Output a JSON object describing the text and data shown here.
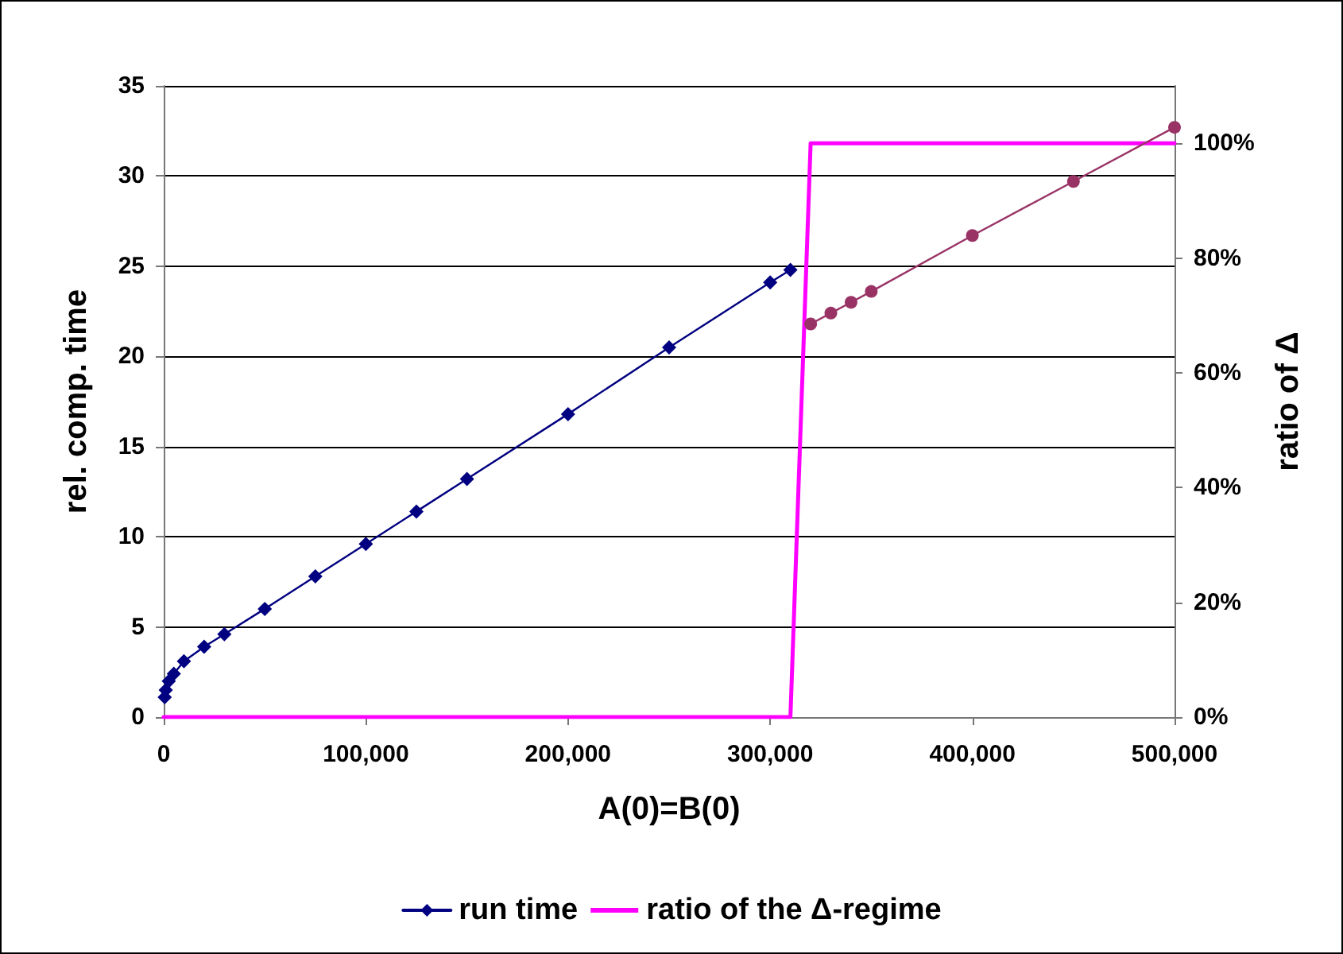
{
  "chart_data": {
    "type": "line",
    "xlabel": "A(0)=B(0)",
    "ylabel": "rel. comp. time",
    "y2label": "ratio of Δ",
    "xlim": [
      0,
      500000
    ],
    "xticks": [
      {
        "value": 0,
        "label": "0"
      },
      {
        "value": 100000,
        "label": "100,000"
      },
      {
        "value": 200000,
        "label": "200,000"
      },
      {
        "value": 300000,
        "label": "300,000"
      },
      {
        "value": 400000,
        "label": "400,000"
      },
      {
        "value": 500000,
        "label": "500,000"
      }
    ],
    "ylim": [
      0,
      35
    ],
    "yticks": [
      0,
      5,
      10,
      15,
      20,
      25,
      30,
      35
    ],
    "y2lim": [
      0,
      110
    ],
    "y2ticks": [
      {
        "value": 0,
        "label": "0%"
      },
      {
        "value": 20,
        "label": "20%"
      },
      {
        "value": 40,
        "label": "40%"
      },
      {
        "value": 60,
        "label": "60%"
      },
      {
        "value": 80,
        "label": "80%"
      },
      {
        "value": 100,
        "label": "100%"
      }
    ],
    "grid": "y",
    "legend": "bottom",
    "series": [
      {
        "name": "run time",
        "color": "#000080",
        "marker": "diamond",
        "x": [
          500,
          1000,
          2500,
          5000,
          10000,
          20000,
          30000,
          50000,
          75000,
          100000,
          125000,
          150000,
          200000,
          250000,
          300000,
          310000
        ],
        "values": [
          1.1,
          1.5,
          2.0,
          2.4,
          3.1,
          3.9,
          4.6,
          6.0,
          7.8,
          9.6,
          11.4,
          13.2,
          16.8,
          20.5,
          24.1,
          24.8
        ]
      },
      {
        "name": "ratio of the Δ-regime",
        "color": "#ff00ff",
        "marker": "none",
        "axis": "y2",
        "x": [
          0,
          310000,
          320000,
          500000
        ],
        "values": [
          0,
          0,
          100,
          100
        ]
      },
      {
        "color": "#993366",
        "marker": "circle",
        "x": [
          320000,
          330000,
          340000,
          350000,
          400000,
          450000,
          500000
        ],
        "values": [
          21.8,
          22.4,
          23.0,
          23.6,
          26.7,
          29.7,
          32.7
        ]
      }
    ]
  }
}
